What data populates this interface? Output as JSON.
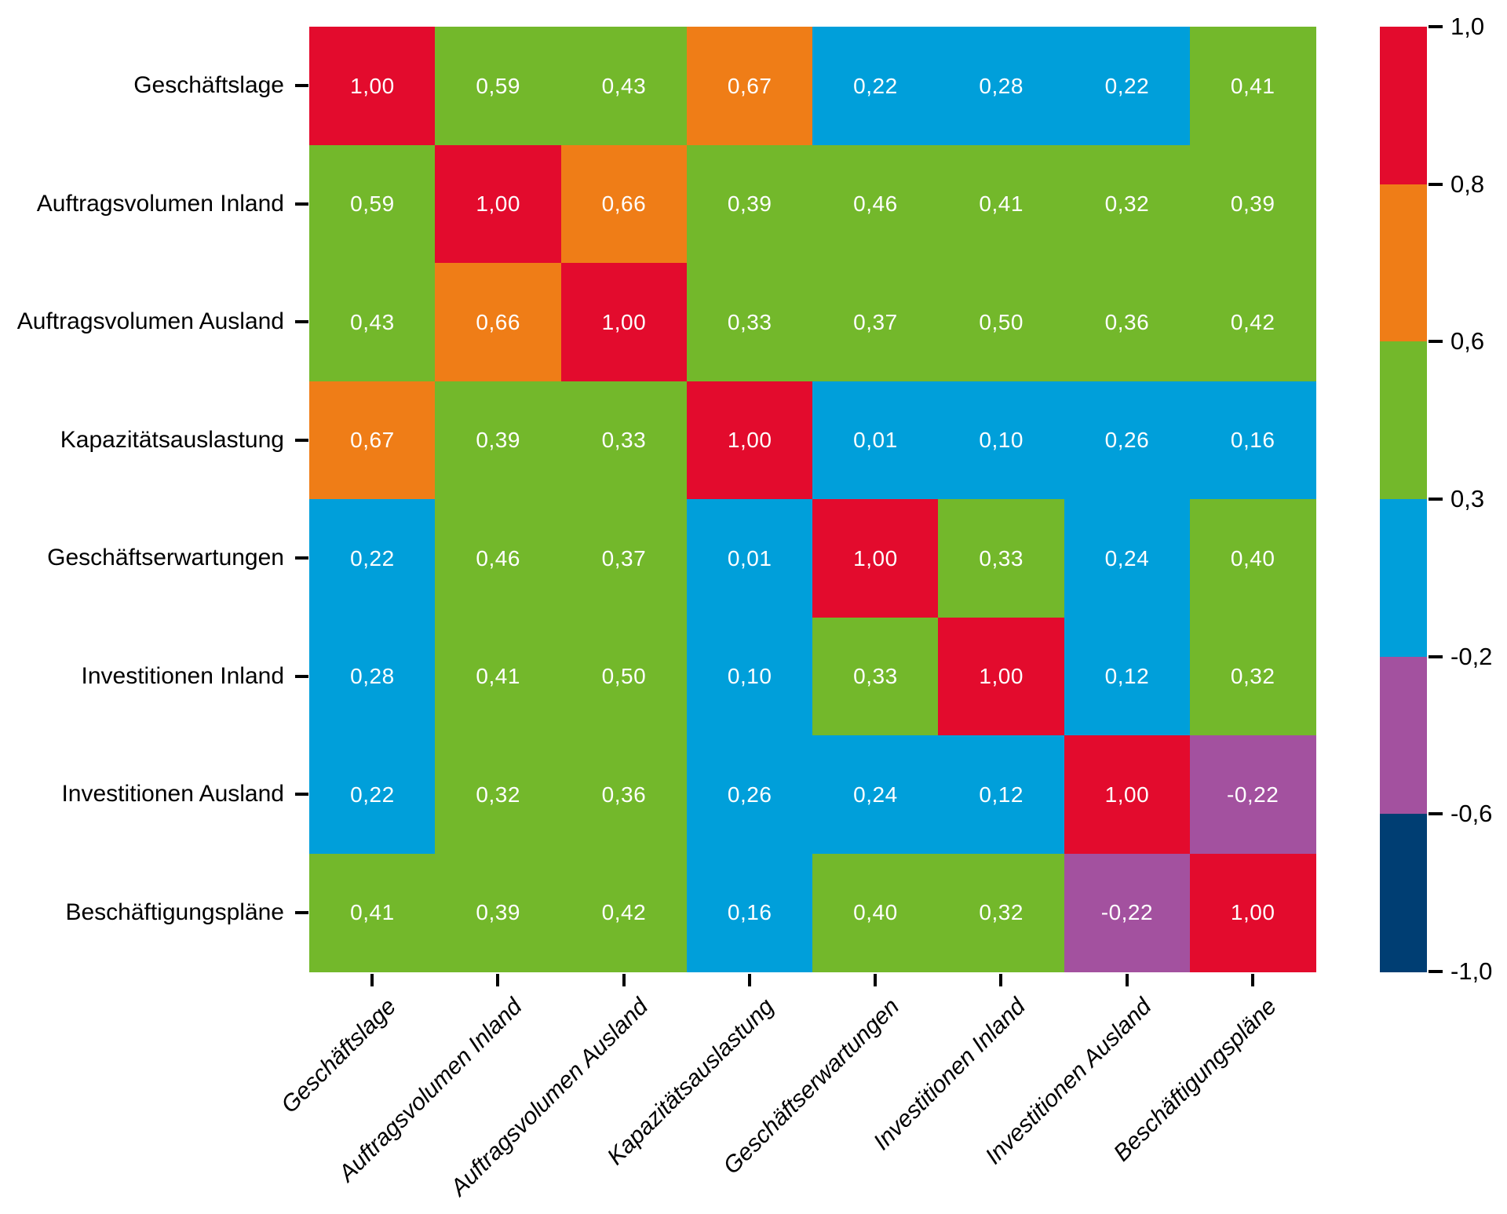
{
  "figure": {
    "background": "#ffffff",
    "text_color": "#000000"
  },
  "chart_data": {
    "type": "heatmap",
    "subtype": "correlation-matrix",
    "title": "",
    "xlabel": "",
    "ylabel": "",
    "grid": false,
    "legend_position": "colorbar-right",
    "categories": [
      "Geschäftslage",
      "Auftragsvolumen Inland",
      "Auftragsvolumen Ausland",
      "Kapazitätsauslastung",
      "Geschäftserwartungen",
      "Investitionen Inland",
      "Investitionen Ausland",
      "Beschäftigungspläne"
    ],
    "matrix": [
      [
        1.0,
        0.59,
        0.43,
        0.67,
        0.22,
        0.28,
        0.22,
        0.41
      ],
      [
        0.59,
        1.0,
        0.66,
        0.39,
        0.46,
        0.41,
        0.32,
        0.39
      ],
      [
        0.43,
        0.66,
        1.0,
        0.33,
        0.37,
        0.5,
        0.36,
        0.42
      ],
      [
        0.67,
        0.39,
        0.33,
        1.0,
        0.01,
        0.1,
        0.26,
        0.16
      ],
      [
        0.22,
        0.46,
        0.37,
        0.01,
        1.0,
        0.33,
        0.24,
        0.4
      ],
      [
        0.28,
        0.41,
        0.5,
        0.1,
        0.33,
        1.0,
        0.12,
        0.32
      ],
      [
        0.22,
        0.32,
        0.36,
        0.26,
        0.24,
        0.12,
        1.0,
        -0.22
      ],
      [
        0.41,
        0.39,
        0.42,
        0.16,
        0.4,
        0.32,
        -0.22,
        1.0
      ]
    ],
    "cell_labels": [
      [
        "1,00",
        "0,59",
        "0,43",
        "0,67",
        "0,22",
        "0,28",
        "0,22",
        "0,41"
      ],
      [
        "0,59",
        "1,00",
        "0,66",
        "0,39",
        "0,46",
        "0,41",
        "0,32",
        "0,39"
      ],
      [
        "0,43",
        "0,66",
        "1,00",
        "0,33",
        "0,37",
        "0,50",
        "0,36",
        "0,42"
      ],
      [
        "0,67",
        "0,39",
        "0,33",
        "1,00",
        "0,01",
        "0,10",
        "0,26",
        "0,16"
      ],
      [
        "0,22",
        "0,46",
        "0,37",
        "0,01",
        "1,00",
        "0,33",
        "0,24",
        "0,40"
      ],
      [
        "0,28",
        "0,41",
        "0,50",
        "0,10",
        "0,33",
        "1,00",
        "0,12",
        "0,32"
      ],
      [
        "0,22",
        "0,32",
        "0,36",
        "0,26",
        "0,24",
        "0,12",
        "1,00",
        "-0,22"
      ],
      [
        "0,41",
        "0,39",
        "0,42",
        "0,16",
        "0,40",
        "0,32",
        "-0,22",
        "1,00"
      ]
    ],
    "value_text_color": "#ffffff",
    "value_range": [
      -1.0,
      1.0
    ],
    "colorscale_bins": [
      {
        "min": 0.8,
        "max": 1.0,
        "color": "#e30b2d"
      },
      {
        "min": 0.6,
        "max": 0.8,
        "color": "#ef7d17"
      },
      {
        "min": 0.3,
        "max": 0.6,
        "color": "#73b82b"
      },
      {
        "min": -0.2,
        "max": 0.3,
        "color": "#009fda"
      },
      {
        "min": -0.6,
        "max": -0.2,
        "color": "#a3519f"
      },
      {
        "min": -1.0,
        "max": -0.6,
        "color": "#003e73"
      }
    ],
    "colorbar": {
      "segment_colors_top_to_bottom": [
        "#e30b2d",
        "#ef7d17",
        "#73b82b",
        "#009fda",
        "#a3519f",
        "#003e73"
      ],
      "tick_labels": [
        "1,0",
        "0,8",
        "0,6",
        "0,3",
        "-0,2",
        "-0,6",
        "-1,0"
      ]
    },
    "axis": {
      "tick_color": "#000000",
      "x_label_style": "italic, rotated 45deg",
      "y_label_style": "regular"
    }
  }
}
